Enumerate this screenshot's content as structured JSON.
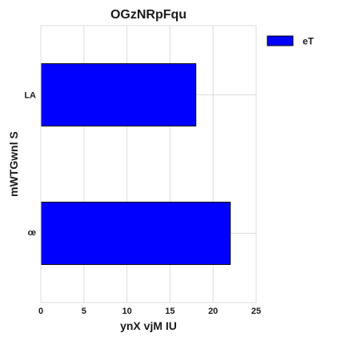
{
  "chart_data": {
    "type": "bar",
    "orientation": "horizontal",
    "title": "OGzNRpFqu",
    "xlabel": "ynX vjM IU",
    "ylabel": "mWTGwnl S",
    "categories": [
      "LA",
      "œ"
    ],
    "series": [
      {
        "name": "eT",
        "values": [
          18,
          22
        ],
        "color": "#0000ff"
      }
    ],
    "xlim": [
      0,
      25
    ],
    "xticks": [
      0,
      5,
      10,
      15,
      20,
      25
    ],
    "grid": true,
    "legend_position": "top-right"
  }
}
